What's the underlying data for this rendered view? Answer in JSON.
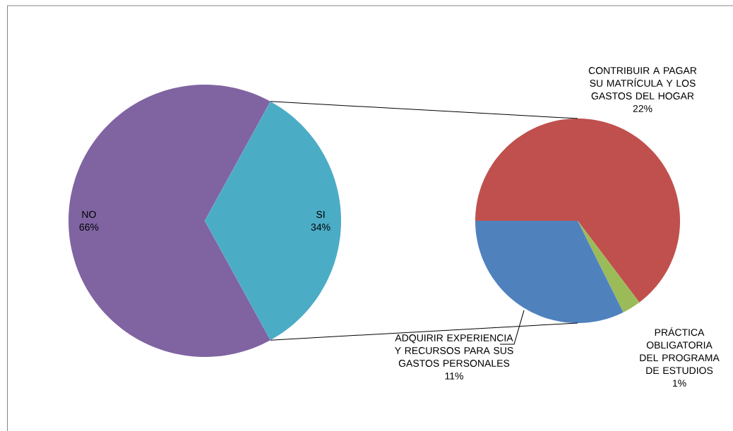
{
  "chart_data": [
    {
      "type": "pie",
      "categories": [
        "NO",
        "SI"
      ],
      "values": [
        66,
        34
      ],
      "colors": [
        "#8064a2",
        "#4bacc6"
      ],
      "value_labels": [
        "66%",
        "34%"
      ]
    },
    {
      "type": "pie",
      "categories": [
        "CONTRIBUIR A PAGAR SU MATRÍCULA Y LOS GASTOS DEL HOGAR",
        "PRÁCTICA OBLIGATORIA DEL PROGRAMA DE ESTUDIOS",
        "ADQUIRIR EXPERIENCIA Y RECURSOS PARA SUS GASTOS PERSONALES"
      ],
      "values": [
        22,
        1,
        11
      ],
      "colors": [
        "#c0504d",
        "#9bbb59",
        "#4f81bd"
      ],
      "value_labels": [
        "22%",
        "1%",
        "11%"
      ]
    }
  ]
}
